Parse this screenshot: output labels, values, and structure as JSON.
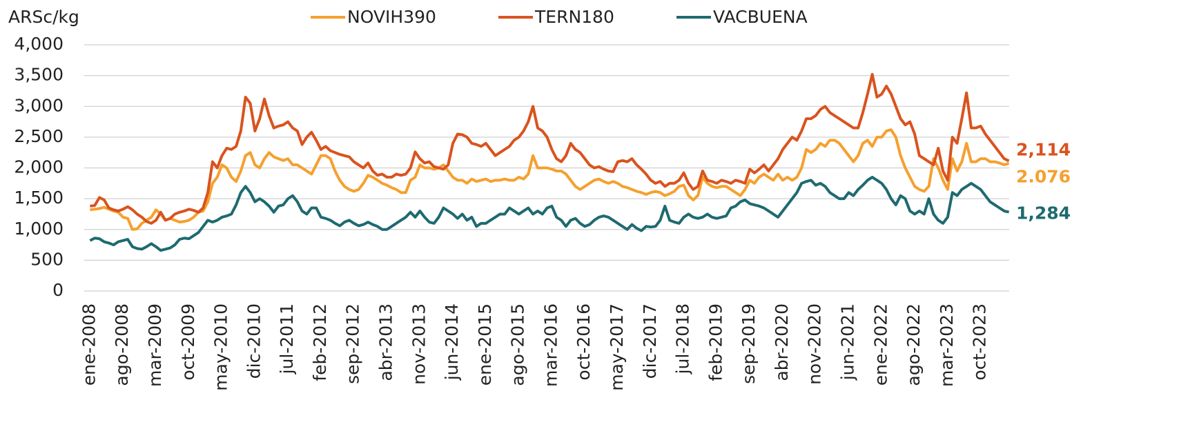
{
  "chart_data": {
    "type": "line",
    "y_label": "ARSc/kg",
    "categories": [
      "ene-2008",
      null,
      null,
      null,
      null,
      null,
      null,
      "ago-2008",
      null,
      null,
      null,
      null,
      null,
      null,
      "mar-2009",
      null,
      null,
      null,
      null,
      null,
      null,
      "oct-2009",
      null,
      null,
      null,
      null,
      null,
      null,
      "may-2010",
      null,
      null,
      null,
      null,
      null,
      null,
      "dic-2010",
      null,
      null,
      null,
      null,
      null,
      null,
      "jul-2011",
      null,
      null,
      null,
      null,
      null,
      null,
      "feb-2012",
      null,
      null,
      null,
      null,
      null,
      null,
      "sep-2012",
      null,
      null,
      null,
      null,
      null,
      null,
      "abr-2013",
      null,
      null,
      null,
      null,
      null,
      null,
      "nov-2013",
      null,
      null,
      null,
      null,
      null,
      null,
      "jun-2014",
      null,
      null,
      null,
      null,
      null,
      null,
      "ene-2015",
      null,
      null,
      null,
      null,
      null,
      null,
      "ago-2015",
      null,
      null,
      null,
      null,
      null,
      null,
      "mar-2016",
      null,
      null,
      null,
      null,
      null,
      null,
      "oct-2016",
      null,
      null,
      null,
      null,
      null,
      null,
      "may-2017",
      null,
      null,
      null,
      null,
      null,
      null,
      "dic-2017",
      null,
      null,
      null,
      null,
      null,
      null,
      "jul-2018",
      null,
      null,
      null,
      null,
      null,
      null,
      "feb-2019",
      null,
      null,
      null,
      null,
      null,
      null,
      "sep-2019",
      null,
      null,
      null,
      null,
      null,
      null,
      "abr-2020",
      null,
      null,
      null,
      null,
      null,
      null,
      "nov-2020",
      null,
      null,
      null,
      null,
      null,
      null,
      "jun-2021",
      null,
      null,
      null,
      null,
      null,
      null,
      "ene-2022",
      null,
      null,
      null,
      null,
      null,
      null,
      "ago-2022",
      null,
      null,
      null,
      null,
      null,
      null,
      "mar-2023",
      null,
      null,
      null,
      null,
      null,
      null,
      "oct-2023",
      null,
      null,
      null,
      null,
      null,
      null
    ],
    "series": [
      {
        "name": "NOVIH390",
        "color": "#f5a02e",
        "end_label": "2.076",
        "values": [
          1320,
          1330,
          1340,
          1360,
          1330,
          1300,
          1280,
          1200,
          1180,
          1000,
          1010,
          1100,
          1150,
          1200,
          1320,
          1250,
          1150,
          1180,
          1150,
          1120,
          1130,
          1150,
          1200,
          1280,
          1300,
          1450,
          1750,
          1850,
          2050,
          2000,
          1850,
          1780,
          1950,
          2200,
          2250,
          2050,
          2000,
          2150,
          2250,
          2180,
          2150,
          2120,
          2150,
          2050,
          2050,
          2000,
          1950,
          1900,
          2050,
          2200,
          2200,
          2150,
          1950,
          1800,
          1700,
          1650,
          1620,
          1650,
          1750,
          1880,
          1850,
          1800,
          1750,
          1720,
          1680,
          1650,
          1600,
          1600,
          1800,
          1850,
          2050,
          2000,
          2000,
          1980,
          2000,
          2050,
          1950,
          1850,
          1800,
          1800,
          1750,
          1820,
          1780,
          1800,
          1820,
          1780,
          1800,
          1800,
          1820,
          1800,
          1800,
          1850,
          1820,
          1900,
          2200,
          2000,
          2000,
          2000,
          1980,
          1950,
          1950,
          1900,
          1800,
          1700,
          1650,
          1700,
          1750,
          1800,
          1820,
          1780,
          1750,
          1780,
          1750,
          1700,
          1680,
          1650,
          1620,
          1600,
          1570,
          1600,
          1620,
          1600,
          1550,
          1580,
          1620,
          1700,
          1720,
          1550,
          1480,
          1550,
          1850,
          1750,
          1700,
          1680,
          1700,
          1700,
          1650,
          1600,
          1550,
          1650,
          1800,
          1750,
          1850,
          1900,
          1850,
          1800,
          1900,
          1800,
          1850,
          1800,
          1850,
          2000,
          2300,
          2250,
          2300,
          2400,
          2350,
          2450,
          2450,
          2400,
          2300,
          2200,
          2100,
          2200,
          2400,
          2450,
          2350,
          2500,
          2500,
          2600,
          2620,
          2500,
          2200,
          2000,
          1850,
          1700,
          1650,
          1620,
          1700,
          2150,
          2000,
          1800,
          1650,
          2150,
          1950,
          2100,
          2400,
          2100,
          2100,
          2150,
          2150,
          2100,
          2100,
          2080,
          2050,
          2076
        ]
      },
      {
        "name": "TERN180",
        "color": "#d9531e",
        "end_label": "2,114",
        "values": [
          1380,
          1390,
          1520,
          1480,
          1350,
          1320,
          1300,
          1330,
          1370,
          1320,
          1250,
          1200,
          1130,
          1100,
          1150,
          1280,
          1150,
          1180,
          1250,
          1280,
          1300,
          1330,
          1310,
          1280,
          1350,
          1600,
          2100,
          2000,
          2200,
          2320,
          2300,
          2350,
          2600,
          3150,
          3050,
          2600,
          2800,
          3120,
          2850,
          2650,
          2680,
          2700,
          2750,
          2650,
          2600,
          2380,
          2500,
          2580,
          2450,
          2300,
          2350,
          2280,
          2250,
          2220,
          2200,
          2180,
          2100,
          2050,
          2000,
          2080,
          1950,
          1880,
          1900,
          1850,
          1850,
          1900,
          1880,
          1900,
          2000,
          2260,
          2150,
          2080,
          2100,
          2020,
          2000,
          1980,
          2050,
          2400,
          2550,
          2540,
          2500,
          2400,
          2380,
          2350,
          2400,
          2300,
          2200,
          2250,
          2300,
          2350,
          2450,
          2500,
          2600,
          2750,
          3000,
          2650,
          2600,
          2500,
          2300,
          2150,
          2100,
          2200,
          2400,
          2300,
          2250,
          2150,
          2050,
          2000,
          2020,
          1980,
          1950,
          1940,
          2100,
          2120,
          2100,
          2150,
          2050,
          1980,
          1900,
          1800,
          1750,
          1780,
          1700,
          1750,
          1750,
          1800,
          1920,
          1750,
          1650,
          1700,
          1950,
          1800,
          1780,
          1750,
          1800,
          1780,
          1750,
          1800,
          1780,
          1750,
          1980,
          1920,
          1980,
          2050,
          1950,
          2050,
          2150,
          2300,
          2400,
          2500,
          2450,
          2600,
          2800,
          2800,
          2850,
          2950,
          3000,
          2900,
          2850,
          2800,
          2750,
          2700,
          2650,
          2650,
          2900,
          3200,
          3520,
          3150,
          3200,
          3330,
          3200,
          3000,
          2800,
          2700,
          2750,
          2550,
          2200,
          2150,
          2100,
          2050,
          2320,
          1950,
          1800,
          2500,
          2400,
          2800,
          3220,
          2650,
          2650,
          2680,
          2550,
          2450,
          2350,
          2250,
          2150,
          2114
        ]
      },
      {
        "name": "VACBUENA",
        "color": "#1e6a70",
        "end_label": "1,284",
        "values": [
          820,
          860,
          850,
          800,
          780,
          750,
          800,
          820,
          840,
          720,
          690,
          680,
          720,
          770,
          720,
          660,
          680,
          700,
          750,
          840,
          860,
          850,
          900,
          950,
          1050,
          1150,
          1120,
          1150,
          1200,
          1220,
          1250,
          1400,
          1600,
          1700,
          1600,
          1450,
          1500,
          1450,
          1380,
          1280,
          1380,
          1400,
          1500,
          1550,
          1450,
          1300,
          1250,
          1350,
          1350,
          1200,
          1180,
          1150,
          1100,
          1060,
          1120,
          1150,
          1100,
          1060,
          1080,
          1120,
          1080,
          1050,
          1000,
          1000,
          1050,
          1100,
          1150,
          1200,
          1280,
          1200,
          1300,
          1200,
          1120,
          1100,
          1200,
          1350,
          1300,
          1250,
          1180,
          1250,
          1150,
          1200,
          1050,
          1100,
          1100,
          1150,
          1200,
          1250,
          1250,
          1350,
          1300,
          1250,
          1300,
          1350,
          1250,
          1300,
          1250,
          1350,
          1380,
          1200,
          1150,
          1050,
          1150,
          1180,
          1100,
          1050,
          1080,
          1150,
          1200,
          1220,
          1200,
          1150,
          1100,
          1050,
          1000,
          1080,
          1020,
          980,
          1050,
          1040,
          1050,
          1150,
          1380,
          1150,
          1120,
          1100,
          1200,
          1250,
          1200,
          1180,
          1200,
          1250,
          1200,
          1180,
          1200,
          1220,
          1350,
          1380,
          1450,
          1480,
          1420,
          1400,
          1380,
          1350,
          1300,
          1250,
          1200,
          1300,
          1400,
          1500,
          1600,
          1750,
          1780,
          1800,
          1720,
          1750,
          1700,
          1600,
          1550,
          1500,
          1500,
          1600,
          1550,
          1650,
          1720,
          1800,
          1850,
          1800,
          1750,
          1650,
          1500,
          1400,
          1550,
          1500,
          1300,
          1250,
          1300,
          1250,
          1500,
          1250,
          1150,
          1100,
          1200,
          1600,
          1550,
          1650,
          1700,
          1750,
          1700,
          1650,
          1550,
          1450,
          1400,
          1350,
          1300,
          1284
        ]
      }
    ],
    "ylim": [
      0,
      4000
    ],
    "yticks": [
      0,
      500,
      {
        "value": 1000,
        "label": "1,000"
      },
      {
        "value": 1500,
        "label": "1,500"
      },
      {
        "value": 2000,
        "label": "2,000"
      },
      {
        "value": 2500,
        "label": "2,500"
      },
      {
        "value": 3000,
        "label": "3,000"
      },
      {
        "value": 3500,
        "label": "3,500"
      },
      {
        "value": 4000,
        "label": "4,000"
      }
    ],
    "grid": true,
    "legend": "top"
  }
}
